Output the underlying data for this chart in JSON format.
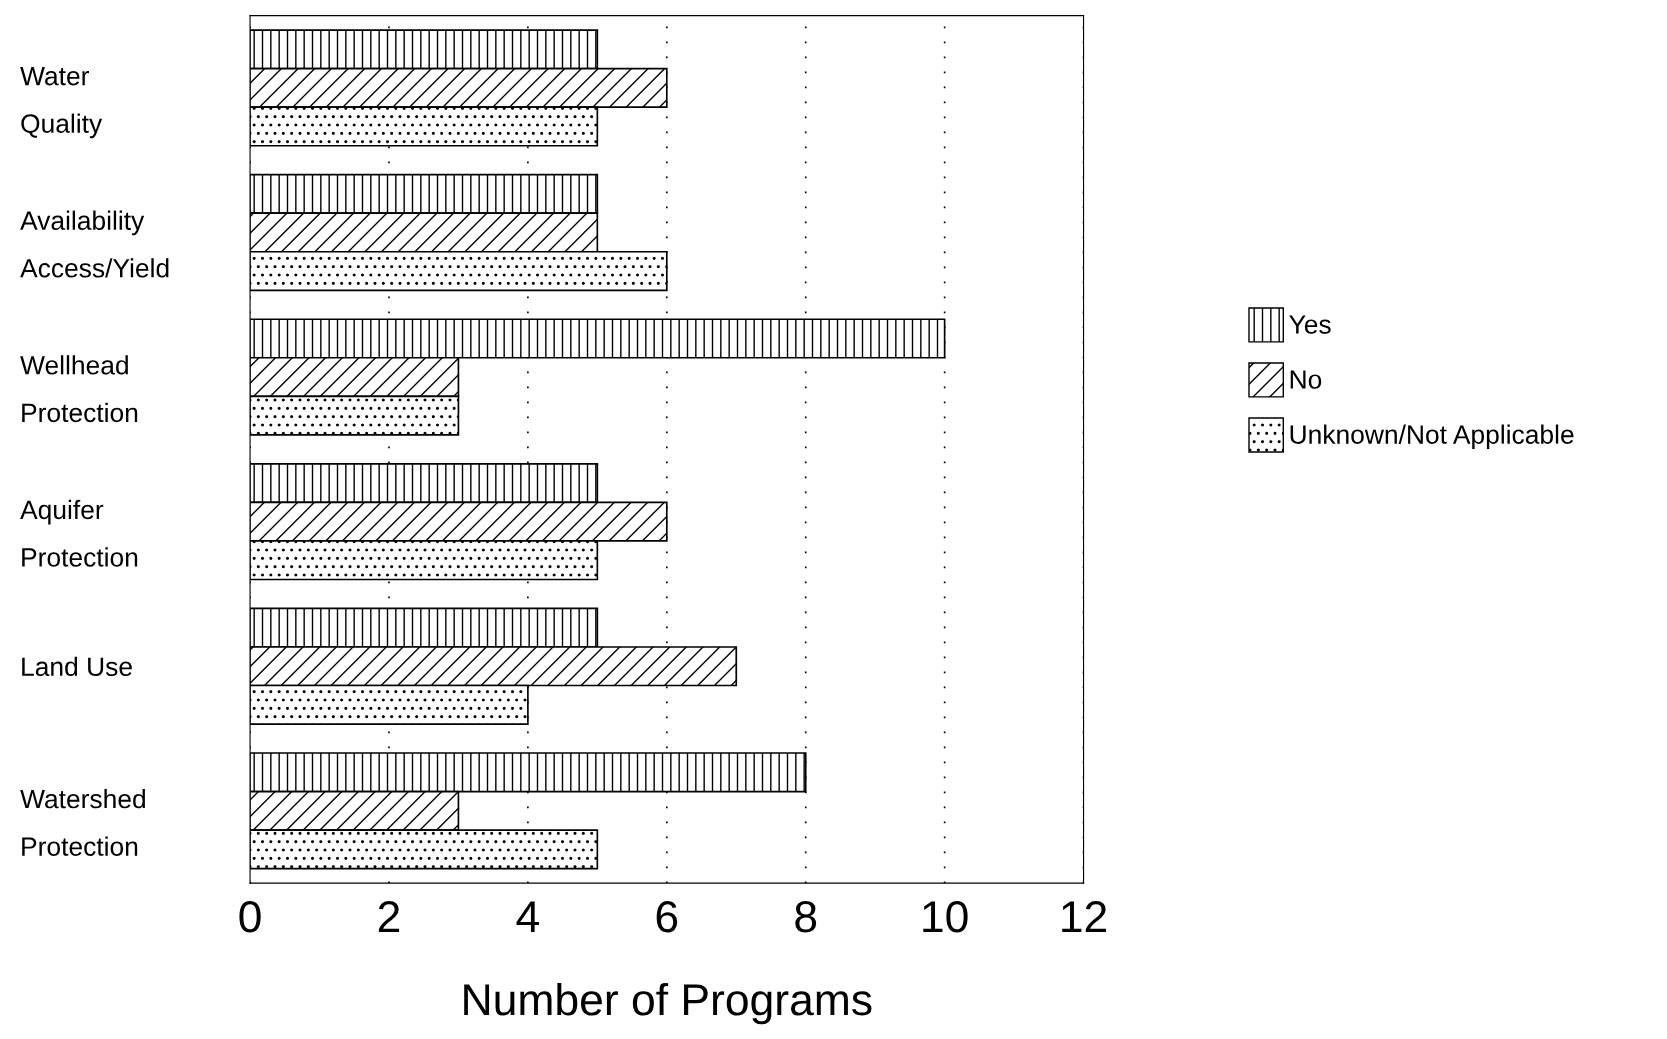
{
  "chart_data": {
    "type": "bar",
    "orientation": "horizontal",
    "xlabel": "Number of Programs",
    "categories": [
      "Water\nQuality",
      "Availability\nAccess/Yield",
      "Wellhead\nProtection",
      "Aquifer\nProtection",
      "Land Use",
      "Watershed\nProtection"
    ],
    "series": [
      {
        "name": "Yes",
        "color": "#000000",
        "values": [
          5,
          5,
          10,
          5,
          5,
          8
        ]
      },
      {
        "name": "No",
        "color": "#000000",
        "values": [
          6,
          5,
          3,
          6,
          7,
          3
        ]
      },
      {
        "name": "Unknown/Not Applicable",
        "color": "#000000",
        "values": [
          5,
          6,
          3,
          5,
          4,
          5
        ]
      }
    ],
    "xlim": [
      0,
      12
    ],
    "xticks": [
      0,
      2,
      4,
      6,
      8,
      10,
      12
    ],
    "grid": "x",
    "legend": "right"
  }
}
